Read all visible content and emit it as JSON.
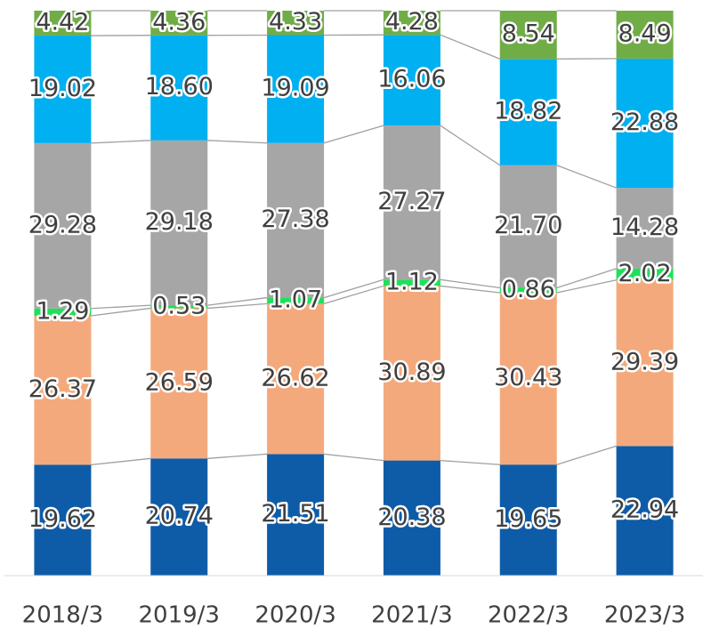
{
  "chart_data": {
    "type": "stacked_bar_100",
    "categories": [
      "2018/3",
      "2019/3",
      "2020/3",
      "2021/3",
      "2022/3",
      "2023/3"
    ],
    "series": [
      {
        "color": "#0e5ca8",
        "values": [
          19.62,
          20.74,
          21.51,
          20.38,
          19.65,
          22.94
        ],
        "value_labels": [
          "19.62",
          "20.74",
          "21.51",
          "20.38",
          "19.65",
          "22.94"
        ]
      },
      {
        "color": "#f4a97c",
        "values": [
          26.37,
          26.59,
          26.62,
          30.89,
          30.43,
          29.39
        ],
        "value_labels": [
          "26.37",
          "26.59",
          "26.62",
          "30.89",
          "30.43",
          "29.39"
        ]
      },
      {
        "color": "#1fe05a",
        "values": [
          1.29,
          0.53,
          1.07,
          1.12,
          0.86,
          2.02
        ],
        "value_labels": [
          "1.29",
          "0.53",
          "1.07",
          "1.12",
          "0.86",
          "2.02"
        ]
      },
      {
        "color": "#a6a6a6",
        "values": [
          29.28,
          29.18,
          27.38,
          27.27,
          21.7,
          14.28
        ],
        "value_labels": [
          "29.28",
          "29.18",
          "27.38",
          "27.27",
          "21.70",
          "14.28"
        ]
      },
      {
        "color": "#00b0f0",
        "values": [
          19.02,
          18.6,
          19.09,
          16.06,
          18.82,
          22.88
        ],
        "value_labels": [
          "19.02",
          "18.60",
          "19.09",
          "16.06",
          "18.82",
          "22.88"
        ]
      },
      {
        "color": "#70ad47",
        "values": [
          4.42,
          4.36,
          4.33,
          4.28,
          8.54,
          8.49
        ],
        "value_labels": [
          "4.42",
          "4.36",
          "4.33",
          "4.28",
          "8.54",
          "8.49"
        ]
      }
    ],
    "ylim": [
      0,
      100
    ]
  }
}
